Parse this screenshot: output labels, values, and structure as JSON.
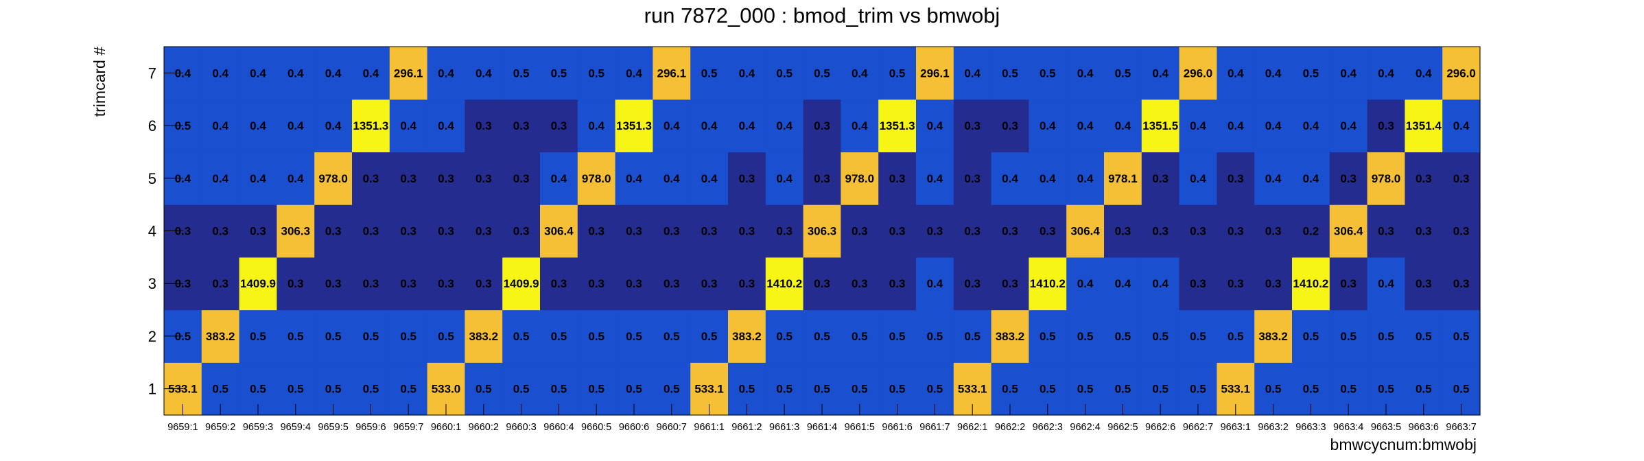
{
  "chart_data": {
    "type": "heatmap",
    "title": "run 7872_000 : bmod_trim vs bmwobj",
    "xlabel": "bmwcycnum:bmwobj",
    "ylabel": "trimcard #",
    "x_categories": [
      "9659:1",
      "9659:2",
      "9659:3",
      "9659:4",
      "9659:5",
      "9659:6",
      "9659:7",
      "9660:1",
      "9660:2",
      "9660:3",
      "9660:4",
      "9660:5",
      "9660:6",
      "9660:7",
      "9661:1",
      "9661:2",
      "9661:3",
      "9661:4",
      "9661:5",
      "9661:6",
      "9661:7",
      "9662:1",
      "9662:2",
      "9662:3",
      "9662:4",
      "9662:5",
      "9662:6",
      "9662:7",
      "9663:1",
      "9663:2",
      "9663:3",
      "9663:4",
      "9663:5",
      "9663:6",
      "9663:7"
    ],
    "y_categories": [
      "1",
      "2",
      "3",
      "4",
      "5",
      "6",
      "7"
    ],
    "values": [
      [
        "533.1",
        "0.5",
        "0.5",
        "0.5",
        "0.5",
        "0.5",
        "0.5",
        "533.0",
        "0.5",
        "0.5",
        "0.5",
        "0.5",
        "0.5",
        "0.5",
        "533.1",
        "0.5",
        "0.5",
        "0.5",
        "0.5",
        "0.5",
        "0.5",
        "533.1",
        "0.5",
        "0.5",
        "0.5",
        "0.5",
        "0.5",
        "0.5",
        "533.1",
        "0.5",
        "0.5",
        "0.5",
        "0.5",
        "0.5",
        "0.5"
      ],
      [
        "0.5",
        "383.2",
        "0.5",
        "0.5",
        "0.5",
        "0.5",
        "0.5",
        "0.5",
        "383.2",
        "0.5",
        "0.5",
        "0.5",
        "0.5",
        "0.5",
        "0.5",
        "383.2",
        "0.5",
        "0.5",
        "0.5",
        "0.5",
        "0.5",
        "0.5",
        "383.2",
        "0.5",
        "0.5",
        "0.5",
        "0.5",
        "0.5",
        "0.5",
        "383.2",
        "0.5",
        "0.5",
        "0.5",
        "0.5",
        "0.5"
      ],
      [
        "0.3",
        "0.3",
        "1409.9",
        "0.3",
        "0.3",
        "0.3",
        "0.3",
        "0.3",
        "0.3",
        "1409.9",
        "0.3",
        "0.3",
        "0.3",
        "0.3",
        "0.3",
        "0.3",
        "1410.2",
        "0.3",
        "0.3",
        "0.3",
        "0.4",
        "0.3",
        "0.3",
        "1410.2",
        "0.4",
        "0.4",
        "0.4",
        "0.3",
        "0.3",
        "0.3",
        "1410.2",
        "0.3",
        "0.4",
        "0.3",
        "0.3"
      ],
      [
        "0.3",
        "0.3",
        "0.3",
        "306.3",
        "0.3",
        "0.3",
        "0.3",
        "0.3",
        "0.3",
        "0.3",
        "306.4",
        "0.3",
        "0.3",
        "0.3",
        "0.3",
        "0.3",
        "0.3",
        "306.3",
        "0.3",
        "0.3",
        "0.3",
        "0.3",
        "0.3",
        "0.3",
        "306.4",
        "0.3",
        "0.3",
        "0.3",
        "0.3",
        "0.3",
        "0.2",
        "306.4",
        "0.3",
        "0.3",
        "0.3"
      ],
      [
        "0.4",
        "0.4",
        "0.4",
        "0.4",
        "978.0",
        "0.3",
        "0.3",
        "0.3",
        "0.3",
        "0.3",
        "0.4",
        "978.0",
        "0.4",
        "0.4",
        "0.4",
        "0.3",
        "0.4",
        "0.3",
        "978.0",
        "0.3",
        "0.4",
        "0.3",
        "0.4",
        "0.4",
        "0.4",
        "978.1",
        "0.3",
        "0.4",
        "0.3",
        "0.4",
        "0.4",
        "0.3",
        "978.0",
        "0.3",
        "0.3"
      ],
      [
        "0.5",
        "0.4",
        "0.4",
        "0.4",
        "0.4",
        "1351.3",
        "0.4",
        "0.4",
        "0.3",
        "0.3",
        "0.3",
        "0.4",
        "1351.3",
        "0.4",
        "0.4",
        "0.4",
        "0.4",
        "0.3",
        "0.4",
        "1351.3",
        "0.4",
        "0.3",
        "0.3",
        "0.4",
        "0.4",
        "0.4",
        "1351.5",
        "0.4",
        "0.4",
        "0.4",
        "0.4",
        "0.4",
        "0.3",
        "1351.4",
        "0.4"
      ],
      [
        "0.4",
        "0.4",
        "0.4",
        "0.4",
        "0.4",
        "0.4",
        "296.1",
        "0.4",
        "0.4",
        "0.5",
        "0.5",
        "0.5",
        "0.4",
        "296.1",
        "0.5",
        "0.4",
        "0.5",
        "0.5",
        "0.4",
        "0.5",
        "296.1",
        "0.4",
        "0.5",
        "0.5",
        "0.4",
        "0.5",
        "0.4",
        "296.0",
        "0.4",
        "0.4",
        "0.5",
        "0.4",
        "0.4",
        "0.4",
        "296.0"
      ]
    ],
    "colors": {
      "level_1": "#242d8f",
      "level_2": "#1a4fcf",
      "level_3": "#f5c035",
      "level_4": "#f7f516"
    }
  }
}
